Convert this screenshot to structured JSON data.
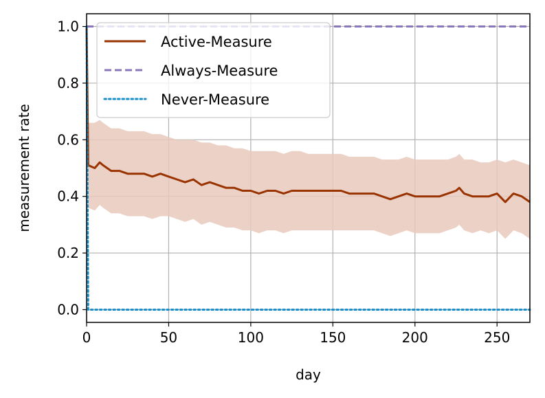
{
  "chart_data": {
    "type": "line",
    "xlabel": "day",
    "ylabel": "measurement rate",
    "xlim": [
      0,
      270
    ],
    "ylim": [
      -0.045,
      1.045
    ],
    "xticks": [
      0,
      50,
      100,
      150,
      200,
      250
    ],
    "yticks": [
      0.0,
      0.2,
      0.4,
      0.6,
      0.8,
      1.0
    ],
    "ytick_labels": [
      "0.0",
      "0.2",
      "0.4",
      "0.6",
      "0.8",
      "1.0"
    ],
    "grid": true,
    "legend_position": "top-left",
    "series": [
      {
        "name": "Active-Measure",
        "style": "solid",
        "color": "#993300",
        "band_color": "#e8c9bc",
        "x": [
          0,
          1,
          5,
          8,
          10,
          15,
          20,
          25,
          30,
          35,
          40,
          45,
          50,
          55,
          60,
          65,
          70,
          75,
          80,
          85,
          90,
          95,
          100,
          105,
          110,
          115,
          120,
          125,
          130,
          135,
          140,
          145,
          150,
          155,
          160,
          165,
          170,
          175,
          180,
          185,
          190,
          195,
          200,
          205,
          210,
          215,
          220,
          225,
          227,
          230,
          235,
          240,
          245,
          250,
          255,
          260,
          265,
          270
        ],
        "y": [
          1.0,
          0.51,
          0.5,
          0.52,
          0.51,
          0.49,
          0.49,
          0.48,
          0.48,
          0.48,
          0.47,
          0.48,
          0.47,
          0.46,
          0.45,
          0.46,
          0.44,
          0.45,
          0.44,
          0.43,
          0.43,
          0.42,
          0.42,
          0.41,
          0.42,
          0.42,
          0.41,
          0.42,
          0.42,
          0.42,
          0.42,
          0.42,
          0.42,
          0.42,
          0.41,
          0.41,
          0.41,
          0.41,
          0.4,
          0.39,
          0.4,
          0.41,
          0.4,
          0.4,
          0.4,
          0.4,
          0.41,
          0.42,
          0.43,
          0.41,
          0.4,
          0.4,
          0.4,
          0.41,
          0.38,
          0.41,
          0.4,
          0.38
        ],
        "upper": [
          1.0,
          0.66,
          0.66,
          0.67,
          0.66,
          0.64,
          0.64,
          0.63,
          0.63,
          0.63,
          0.62,
          0.62,
          0.61,
          0.6,
          0.6,
          0.6,
          0.59,
          0.59,
          0.58,
          0.58,
          0.57,
          0.57,
          0.56,
          0.56,
          0.56,
          0.56,
          0.55,
          0.56,
          0.56,
          0.55,
          0.55,
          0.55,
          0.55,
          0.55,
          0.54,
          0.54,
          0.54,
          0.54,
          0.53,
          0.53,
          0.53,
          0.54,
          0.53,
          0.53,
          0.53,
          0.53,
          0.53,
          0.54,
          0.55,
          0.53,
          0.53,
          0.52,
          0.52,
          0.53,
          0.52,
          0.53,
          0.52,
          0.51
        ],
        "lower": [
          1.0,
          0.36,
          0.35,
          0.37,
          0.36,
          0.34,
          0.34,
          0.33,
          0.33,
          0.33,
          0.32,
          0.33,
          0.33,
          0.32,
          0.31,
          0.32,
          0.3,
          0.31,
          0.3,
          0.29,
          0.29,
          0.28,
          0.28,
          0.27,
          0.28,
          0.28,
          0.27,
          0.28,
          0.28,
          0.28,
          0.28,
          0.28,
          0.28,
          0.28,
          0.28,
          0.28,
          0.28,
          0.28,
          0.27,
          0.26,
          0.27,
          0.28,
          0.27,
          0.27,
          0.27,
          0.27,
          0.28,
          0.29,
          0.3,
          0.28,
          0.27,
          0.28,
          0.27,
          0.28,
          0.25,
          0.28,
          0.27,
          0.25
        ]
      },
      {
        "name": "Always-Measure",
        "style": "dashed",
        "color": "#8877bb",
        "x": [
          0,
          270
        ],
        "y": [
          1.0,
          1.0
        ]
      },
      {
        "name": "Never-Measure",
        "style": "dotted",
        "color": "#1a8fc9",
        "x": [
          0,
          1,
          270
        ],
        "y": [
          1.0,
          0.0,
          0.0
        ]
      }
    ]
  }
}
